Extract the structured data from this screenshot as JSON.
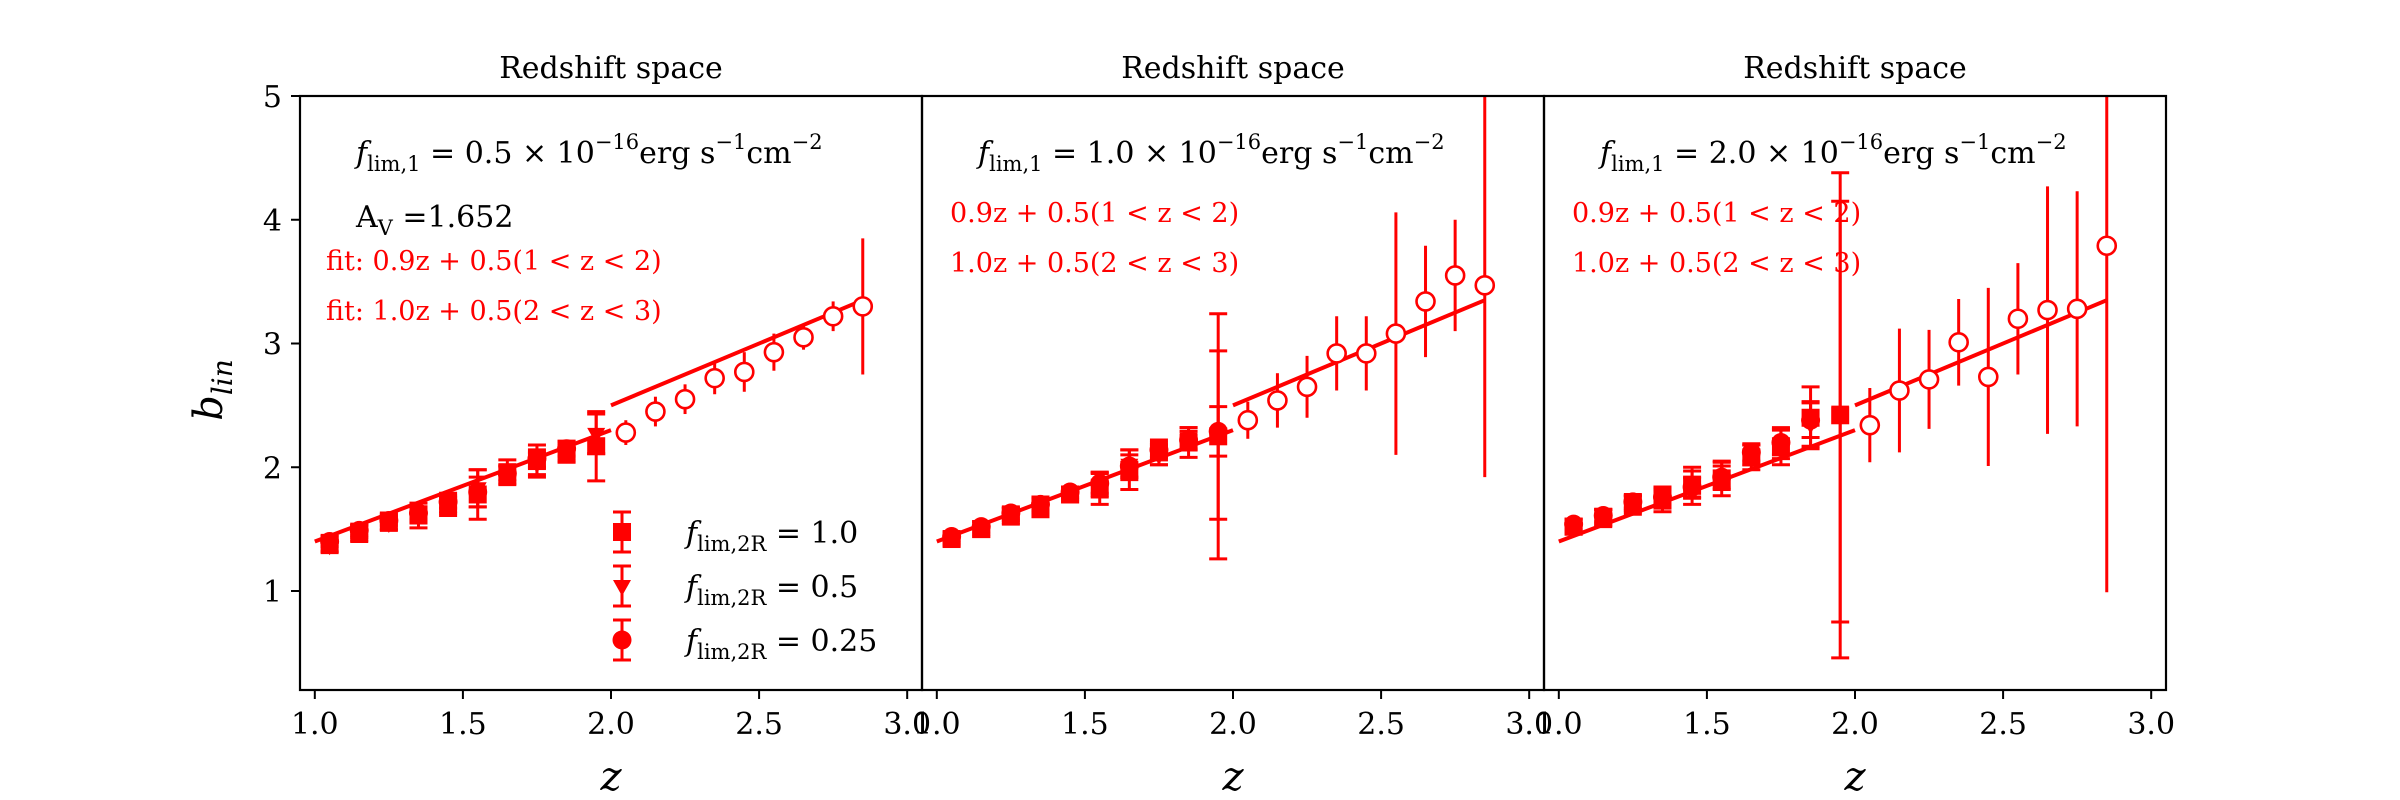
{
  "figure": {
    "ylabel_main": "b",
    "ylabel_sub": "lin",
    "xlabel": "z"
  },
  "legend": [
    {
      "id": "sq",
      "marker": "square",
      "label": "f",
      "sub": "lim,2R",
      "value": " = 1.0"
    },
    {
      "id": "tri",
      "marker": "triangle",
      "label": "f",
      "sub": "lim,2R",
      "value": " = 0.5"
    },
    {
      "id": "dot",
      "marker": "circle",
      "label": "f",
      "sub": "lim,2R",
      "value": " = 0.25"
    }
  ],
  "chart_data": [
    {
      "type": "scatter",
      "title": "Redshift space",
      "xlabel": "z",
      "ylabel": "b_lin",
      "xlim": [
        0.95,
        3.05
      ],
      "ylim": [
        0.2,
        5.0
      ],
      "xticks": [
        1.0,
        1.5,
        2.0,
        2.5,
        3.0
      ],
      "xticklabels": [
        "1.0",
        "1.5",
        "2.0",
        "2.5",
        "3.0"
      ],
      "yticks": [
        1,
        2,
        3,
        4,
        5
      ],
      "yticklabels": [
        "1",
        "2",
        "3",
        "4",
        "5"
      ],
      "flux_label": {
        "f": "f",
        "sub": "lim,1",
        "value": " = 0.5 × 10",
        "exp": "−16",
        "unit": "erg s",
        "unit_exp1": "−1",
        "unit2": "cm",
        "unit_exp2": "−2"
      },
      "extra_label": "A",
      "extra_label_sub": "V",
      "extra_label_value": " =1.652",
      "fit_labels": [
        "fit: 0.9z + 0.5(1 < z < 2)",
        "fit: 1.0z + 0.5(2 < z < 3)"
      ],
      "fits": [
        {
          "slope": 0.9,
          "intercept": 0.5,
          "x_range": [
            1.0,
            2.0
          ]
        },
        {
          "slope": 1.0,
          "intercept": 0.5,
          "x_range": [
            2.0,
            2.85
          ]
        }
      ],
      "series": [
        {
          "name": "f_lim,2R = 1.0",
          "marker": "square",
          "x": [
            1.05,
            1.15,
            1.25,
            1.35,
            1.45,
            1.55,
            1.65,
            1.75,
            1.85,
            1.95
          ],
          "y": [
            1.38,
            1.47,
            1.56,
            1.61,
            1.7,
            1.78,
            1.96,
            2.05,
            2.13,
            2.17
          ],
          "err": [
            0.07,
            0.07,
            0.07,
            0.1,
            0.09,
            0.2,
            0.1,
            0.13,
            0.08,
            0.28
          ]
        },
        {
          "name": "f_lim,2R = 0.5",
          "marker": "triangle",
          "x": [
            1.05,
            1.15,
            1.25,
            1.35,
            1.45,
            1.55,
            1.65,
            1.75,
            1.85,
            1.95
          ],
          "y": [
            1.37,
            1.48,
            1.55,
            1.62,
            1.69,
            1.83,
            1.94,
            2.03,
            2.11,
            2.27
          ],
          "err": [
            0.05,
            0.05,
            0.05,
            0.06,
            0.06,
            0.15,
            0.07,
            0.09,
            0.07,
            0.16
          ]
        },
        {
          "name": "f_lim,2R = 0.25",
          "marker": "circle",
          "x": [
            1.05,
            1.15,
            1.25,
            1.35,
            1.45,
            1.55,
            1.65,
            1.75,
            1.85
          ],
          "y": [
            1.4,
            1.49,
            1.57,
            1.63,
            1.72,
            1.8,
            1.95,
            2.07,
            2.15
          ],
          "err": [
            0.04,
            0.04,
            0.04,
            0.05,
            0.05,
            0.12,
            0.06,
            0.07,
            0.06
          ]
        },
        {
          "name": "open",
          "marker": "open-circle",
          "x": [
            2.05,
            2.15,
            2.25,
            2.35,
            2.45,
            2.55,
            2.65,
            2.75,
            2.85
          ],
          "y": [
            2.28,
            2.45,
            2.55,
            2.72,
            2.77,
            2.93,
            3.05,
            3.22,
            3.3
          ],
          "err": [
            0.1,
            0.12,
            0.12,
            0.13,
            0.16,
            0.15,
            0.1,
            0.12,
            0.55
          ]
        }
      ]
    },
    {
      "type": "scatter",
      "title": "Redshift space",
      "xlabel": "z",
      "xlim": [
        0.95,
        3.05
      ],
      "ylim": [
        0.2,
        5.0
      ],
      "xticks": [
        1.0,
        1.5,
        2.0,
        2.5,
        3.0
      ],
      "xticklabels": [
        "1.0",
        "1.5",
        "2.0",
        "2.5",
        "3.0"
      ],
      "flux_label": {
        "f": "f",
        "sub": "lim,1",
        "value": " = 1.0 × 10",
        "exp": "−16",
        "unit": "erg s",
        "unit_exp1": "−1",
        "unit2": "cm",
        "unit_exp2": "−2"
      },
      "fit_labels": [
        "0.9z + 0.5(1 < z < 2)",
        "1.0z + 0.5(2 < z < 3)"
      ],
      "fits": [
        {
          "slope": 0.9,
          "intercept": 0.5,
          "x_range": [
            1.0,
            2.0
          ]
        },
        {
          "slope": 1.0,
          "intercept": 0.5,
          "x_range": [
            2.0,
            2.85
          ]
        }
      ],
      "series": [
        {
          "name": "f_lim,2R = 1.0",
          "marker": "square",
          "x": [
            1.05,
            1.15,
            1.25,
            1.35,
            1.45,
            1.55,
            1.65,
            1.75,
            1.85,
            1.95
          ],
          "y": [
            1.42,
            1.5,
            1.61,
            1.68,
            1.78,
            1.83,
            1.98,
            2.12,
            2.2,
            2.25
          ],
          "err": [
            0.05,
            0.06,
            0.07,
            0.08,
            0.06,
            0.13,
            0.16,
            0.1,
            0.12,
            0.99
          ]
        },
        {
          "name": "f_lim,2R = 0.5",
          "marker": "triangle",
          "x": [
            1.05,
            1.15,
            1.25,
            1.35,
            1.45,
            1.55,
            1.65,
            1.75,
            1.85,
            1.95
          ],
          "y": [
            1.43,
            1.51,
            1.62,
            1.69,
            1.79,
            1.86,
            2.02,
            2.1,
            2.23,
            2.26
          ],
          "err": [
            0.04,
            0.05,
            0.05,
            0.06,
            0.05,
            0.1,
            0.12,
            0.08,
            0.09,
            0.68
          ]
        },
        {
          "name": "f_lim,2R = 0.25",
          "marker": "circle",
          "x": [
            1.05,
            1.15,
            1.25,
            1.35,
            1.45,
            1.55,
            1.65,
            1.75,
            1.85,
            1.95
          ],
          "y": [
            1.44,
            1.52,
            1.63,
            1.7,
            1.8,
            1.87,
            2.01,
            2.14,
            2.22,
            2.29
          ],
          "err": [
            0.03,
            0.04,
            0.04,
            0.05,
            0.04,
            0.08,
            0.09,
            0.06,
            0.07,
            0.2
          ]
        },
        {
          "name": "open",
          "marker": "open-circle",
          "x": [
            2.05,
            2.15,
            2.25,
            2.35,
            2.45,
            2.55,
            2.65,
            2.75,
            2.85
          ],
          "y": [
            2.38,
            2.54,
            2.65,
            2.92,
            2.92,
            3.08,
            3.34,
            3.55,
            3.47
          ],
          "err": [
            0.15,
            0.22,
            0.25,
            0.3,
            0.3,
            0.98,
            0.45,
            0.45,
            1.55
          ]
        }
      ]
    },
    {
      "type": "scatter",
      "title": "Redshift space",
      "xlabel": "z",
      "xlim": [
        0.95,
        3.05
      ],
      "ylim": [
        0.2,
        5.0
      ],
      "xticks": [
        1.0,
        1.5,
        2.0,
        2.5,
        3.0
      ],
      "xticklabels": [
        "1.0",
        "1.5",
        "2.0",
        "2.5",
        "3.0"
      ],
      "flux_label": {
        "f": "f",
        "sub": "lim,1",
        "value": " = 2.0 × 10",
        "exp": "−16",
        "unit": "erg s",
        "unit_exp1": "−1",
        "unit2": "cm",
        "unit_exp2": "−2"
      },
      "fit_labels": [
        "0.9z + 0.5(1 < z < 2)",
        "1.0z + 0.5(2 < z < 3)"
      ],
      "fits": [
        {
          "slope": 0.9,
          "intercept": 0.5,
          "x_range": [
            1.0,
            2.0
          ]
        },
        {
          "slope": 1.0,
          "intercept": 0.5,
          "x_range": [
            2.0,
            2.85
          ]
        }
      ],
      "series": [
        {
          "name": "f_lim,2R = 1.0",
          "marker": "square",
          "x": [
            1.05,
            1.15,
            1.25,
            1.35,
            1.45,
            1.55,
            1.65,
            1.75,
            1.85,
            1.95
          ],
          "y": [
            1.52,
            1.59,
            1.7,
            1.74,
            1.85,
            1.91,
            2.08,
            2.17,
            2.4,
            2.42
          ],
          "err": [
            0.06,
            0.07,
            0.08,
            0.1,
            0.15,
            0.14,
            0.1,
            0.15,
            0.25,
            1.96
          ]
        },
        {
          "name": "f_lim,2R = 0.5",
          "marker": "triangle",
          "x": [
            1.05,
            1.15,
            1.25,
            1.35,
            1.45,
            1.55,
            1.65,
            1.75,
            1.85,
            1.95
          ],
          "y": [
            1.53,
            1.6,
            1.71,
            1.75,
            1.86,
            1.93,
            2.1,
            2.19,
            2.35,
            2.45
          ],
          "err": [
            0.05,
            0.06,
            0.06,
            0.08,
            0.11,
            0.11,
            0.08,
            0.12,
            0.18,
            1.7
          ]
        },
        {
          "name": "f_lim,2R = 0.25",
          "marker": "circle",
          "x": [
            1.05,
            1.15,
            1.25,
            1.35,
            1.45,
            1.55,
            1.65,
            1.75,
            1.85
          ],
          "y": [
            1.54,
            1.61,
            1.72,
            1.76,
            1.84,
            1.92,
            2.12,
            2.2,
            2.38
          ],
          "err": [
            0.04,
            0.05,
            0.05,
            0.06,
            0.08,
            0.09,
            0.07,
            0.1,
            0.14
          ]
        },
        {
          "name": "open",
          "marker": "open-circle",
          "x": [
            2.05,
            2.15,
            2.25,
            2.35,
            2.45,
            2.55,
            2.65,
            2.75,
            2.85
          ],
          "y": [
            2.34,
            2.62,
            2.71,
            3.01,
            2.73,
            3.2,
            3.27,
            3.28,
            3.79
          ],
          "err": [
            0.3,
            0.5,
            0.4,
            0.35,
            0.72,
            0.45,
            1.0,
            0.95,
            2.8
          ]
        }
      ]
    }
  ]
}
